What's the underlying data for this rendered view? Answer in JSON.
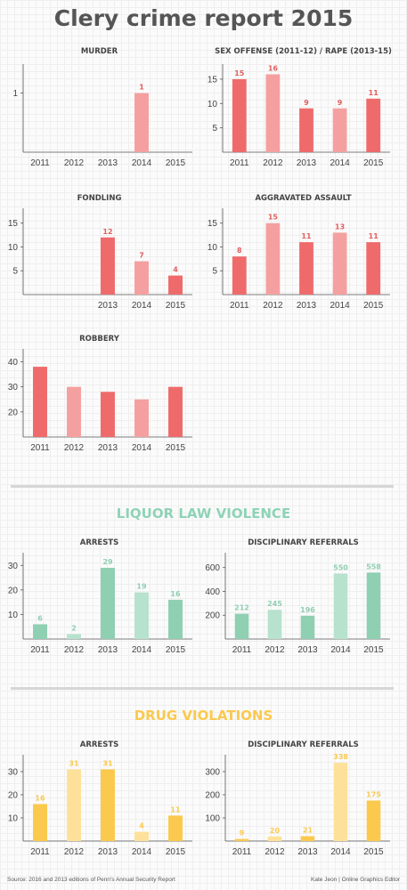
{
  "page": {
    "title": "Clery crime report 2015",
    "sections": {
      "liquor": "LIQUOR LAW VIOLENCE",
      "drug": "DRUG VIOLATIONS"
    },
    "colors": {
      "crime_dark": "#ef6b6b",
      "crime_light": "#f5a0a0",
      "crime_label": "#e0605f",
      "liquor_dark": "#8fcfb2",
      "liquor_light": "#b7e2cd",
      "liquor_section": "#8fd3b7",
      "drug_dark": "#fbc94d",
      "drug_light": "#fde19a",
      "drug_section": "#fbc94d"
    },
    "footer": {
      "source": "Source: 2016 and 2013 editions of Penn's Annual Security Report",
      "credit": "Kate Jeon | Online Graphics Editor"
    }
  },
  "chart_data": [
    {
      "type": "bar",
      "title": "MURDER",
      "categories": [
        "2011",
        "2012",
        "2013",
        "2014",
        "2015"
      ],
      "values": [
        null,
        null,
        null,
        1,
        null
      ],
      "data_labels": [
        "",
        "",
        "",
        "1",
        ""
      ],
      "yticks": [
        1
      ],
      "ylim": [
        0,
        1.4
      ],
      "color_group": "crime"
    },
    {
      "type": "bar",
      "title": "SEX OFFENSE (2011-12) / RAPE (2013-15)",
      "categories": [
        "2011",
        "2012",
        "2013",
        "2014",
        "2015"
      ],
      "values": [
        15,
        16,
        9,
        9,
        11
      ],
      "data_labels": [
        "15",
        "16",
        "9",
        "9",
        "11"
      ],
      "yticks": [
        5,
        10,
        15
      ],
      "ylim": [
        0,
        17
      ],
      "color_group": "crime"
    },
    {
      "type": "bar",
      "title": "FONDLING",
      "categories": [
        "2013",
        "2014",
        "2015"
      ],
      "values": [
        12,
        7,
        4
      ],
      "data_labels": [
        "12",
        "7",
        "4"
      ],
      "yticks": [
        5,
        10,
        15
      ],
      "ylim": [
        0,
        17
      ],
      "color_group": "crime"
    },
    {
      "type": "bar",
      "title": "AGGRAVATED ASSAULT",
      "categories": [
        "2011",
        "2012",
        "2013",
        "2014",
        "2015"
      ],
      "values": [
        8,
        15,
        11,
        13,
        11
      ],
      "data_labels": [
        "8",
        "15",
        "11",
        "13",
        "11"
      ],
      "yticks": [
        5,
        10,
        15
      ],
      "ylim": [
        0,
        17
      ],
      "color_group": "crime"
    },
    {
      "type": "bar",
      "title": "ROBBERY",
      "categories": [
        "2011",
        "2012",
        "2013",
        "2014",
        "2015"
      ],
      "values": [
        38,
        30,
        28,
        25,
        30
      ],
      "data_labels": [
        "",
        "",
        "",
        "",
        ""
      ],
      "yticks": [
        20,
        30,
        40
      ],
      "ylim": [
        10,
        43
      ],
      "color_group": "crime"
    },
    {
      "type": "bar",
      "title": "ARRESTS",
      "group": "LIQUOR LAW VIOLENCE",
      "categories": [
        "2011",
        "2012",
        "2013",
        "2014",
        "2015"
      ],
      "values": [
        6,
        2,
        29,
        19,
        16
      ],
      "data_labels": [
        "6",
        "2",
        "29",
        "19",
        "16"
      ],
      "yticks": [
        10,
        20,
        30
      ],
      "ylim": [
        0,
        33
      ],
      "color_group": "liquor"
    },
    {
      "type": "bar",
      "title": "DISCIPLINARY REFERRALS",
      "group": "LIQUOR LAW VIOLENCE",
      "categories": [
        "2011",
        "2012",
        "2013",
        "2014",
        "2015"
      ],
      "values": [
        212,
        245,
        196,
        550,
        558
      ],
      "data_labels": [
        "212",
        "245",
        "196",
        "550",
        "558"
      ],
      "yticks": [
        200,
        400,
        600
      ],
      "ylim": [
        0,
        680
      ],
      "color_group": "liquor"
    },
    {
      "type": "bar",
      "title": "ARRESTS",
      "group": "DRUG VIOLATIONS",
      "categories": [
        "2011",
        "2012",
        "2013",
        "2014",
        "2015"
      ],
      "values": [
        16,
        31,
        31,
        4,
        11
      ],
      "data_labels": [
        "16",
        "31",
        "31",
        "4",
        "11"
      ],
      "yticks": [
        10,
        20,
        30
      ],
      "ylim": [
        0,
        35
      ],
      "color_group": "drug"
    },
    {
      "type": "bar",
      "title": "DISCIPLINARY REFERRALS",
      "group": "DRUG VIOLATIONS",
      "categories": [
        "2011",
        "2012",
        "2013",
        "2014",
        "2015"
      ],
      "values": [
        9,
        20,
        21,
        338,
        175
      ],
      "data_labels": [
        "9",
        "20",
        "21",
        "338",
        "175"
      ],
      "yticks": [
        100,
        200,
        300
      ],
      "ylim": [
        0,
        350
      ],
      "color_group": "drug"
    }
  ]
}
